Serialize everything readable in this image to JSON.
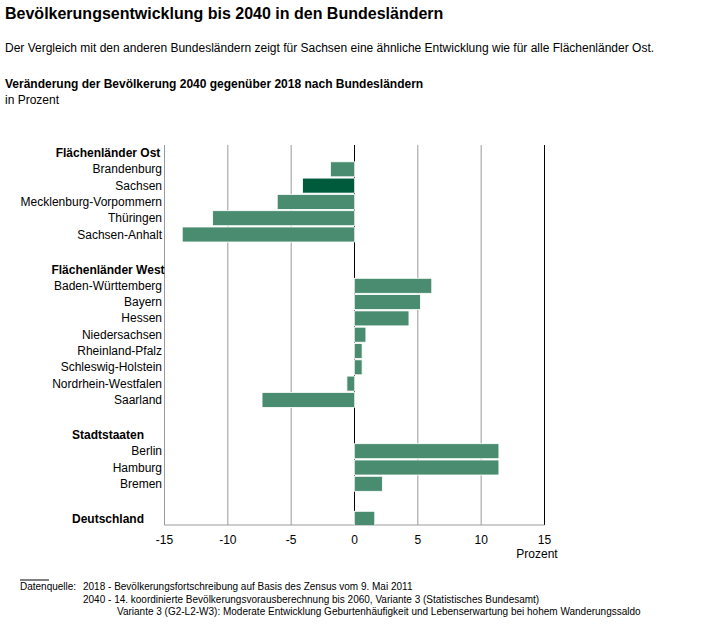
{
  "chart_data": {
    "type": "bar",
    "orientation": "horizontal",
    "title": "Bevölkerungsentwicklung bis 2040 in den Bundesländern",
    "subtitle": "Der Vergleich mit den anderen Bundesländern zeigt für Sachsen eine ähnliche Entwicklung wie für alle Flächenländer Ost.",
    "chart_title": "Veränderung der Bevölkerung 2040 gegenüber 2018 nach Bundesländern",
    "unit": "in Prozent",
    "xlabel": "Prozent",
    "xlim": [
      -15,
      15
    ],
    "xticks": [
      -15,
      -10,
      -5,
      0,
      5,
      10,
      15
    ],
    "grid": true,
    "groups": [
      {
        "name": "Flächenländer Ost",
        "categories": [
          "Brandenburg",
          "Sachsen",
          "Mecklenburg-Vorpommern",
          "Thüringen",
          "Sachsen-Anhalt"
        ],
        "values": [
          -1.9,
          -4.1,
          -6.1,
          -11.2,
          -13.6
        ],
        "colors": [
          "#4a8c70",
          "#005a3c",
          "#4a8c70",
          "#4a8c70",
          "#4a8c70"
        ]
      },
      {
        "name": "Flächenländer West",
        "categories": [
          "Baden-Württemberg",
          "Bayern",
          "Hessen",
          "Niedersachsen",
          "Rheinland-Pfalz",
          "Schleswig-Holstein",
          "Nordrhein-Westfalen",
          "Saarland"
        ],
        "values": [
          6.1,
          5.2,
          4.3,
          0.9,
          0.6,
          0.6,
          -0.6,
          -7.3
        ],
        "colors": [
          "#4a8c70",
          "#4a8c70",
          "#4a8c70",
          "#4a8c70",
          "#4a8c70",
          "#4a8c70",
          "#4a8c70",
          "#4a8c70"
        ]
      },
      {
        "name": "Stadtstaaten",
        "categories": [
          "Berlin",
          "Hamburg",
          "Bremen"
        ],
        "values": [
          11.4,
          11.4,
          2.2
        ],
        "colors": [
          "#4a8c70",
          "#4a8c70",
          "#4a8c70"
        ]
      }
    ],
    "total": {
      "name": "Deutschland",
      "value": 1.6,
      "color": "#4a8c70"
    },
    "source": {
      "label": "Datenquelle:",
      "lines": [
        "2018 - Bevölkerungsfortschreibung auf Basis des Zensus vom 9. Mai 2011",
        "2040 - 14. koordinierte Bevölkerungsvorausberechnung bis 2060, Variante 3 (Statistisches Bundesamt)",
        "Variante 3 (G2-L2-W3): Moderate Entwicklung Geburtenhäufigkeit und Lebenserwartung bei hohem Wanderungssaldo"
      ]
    }
  }
}
